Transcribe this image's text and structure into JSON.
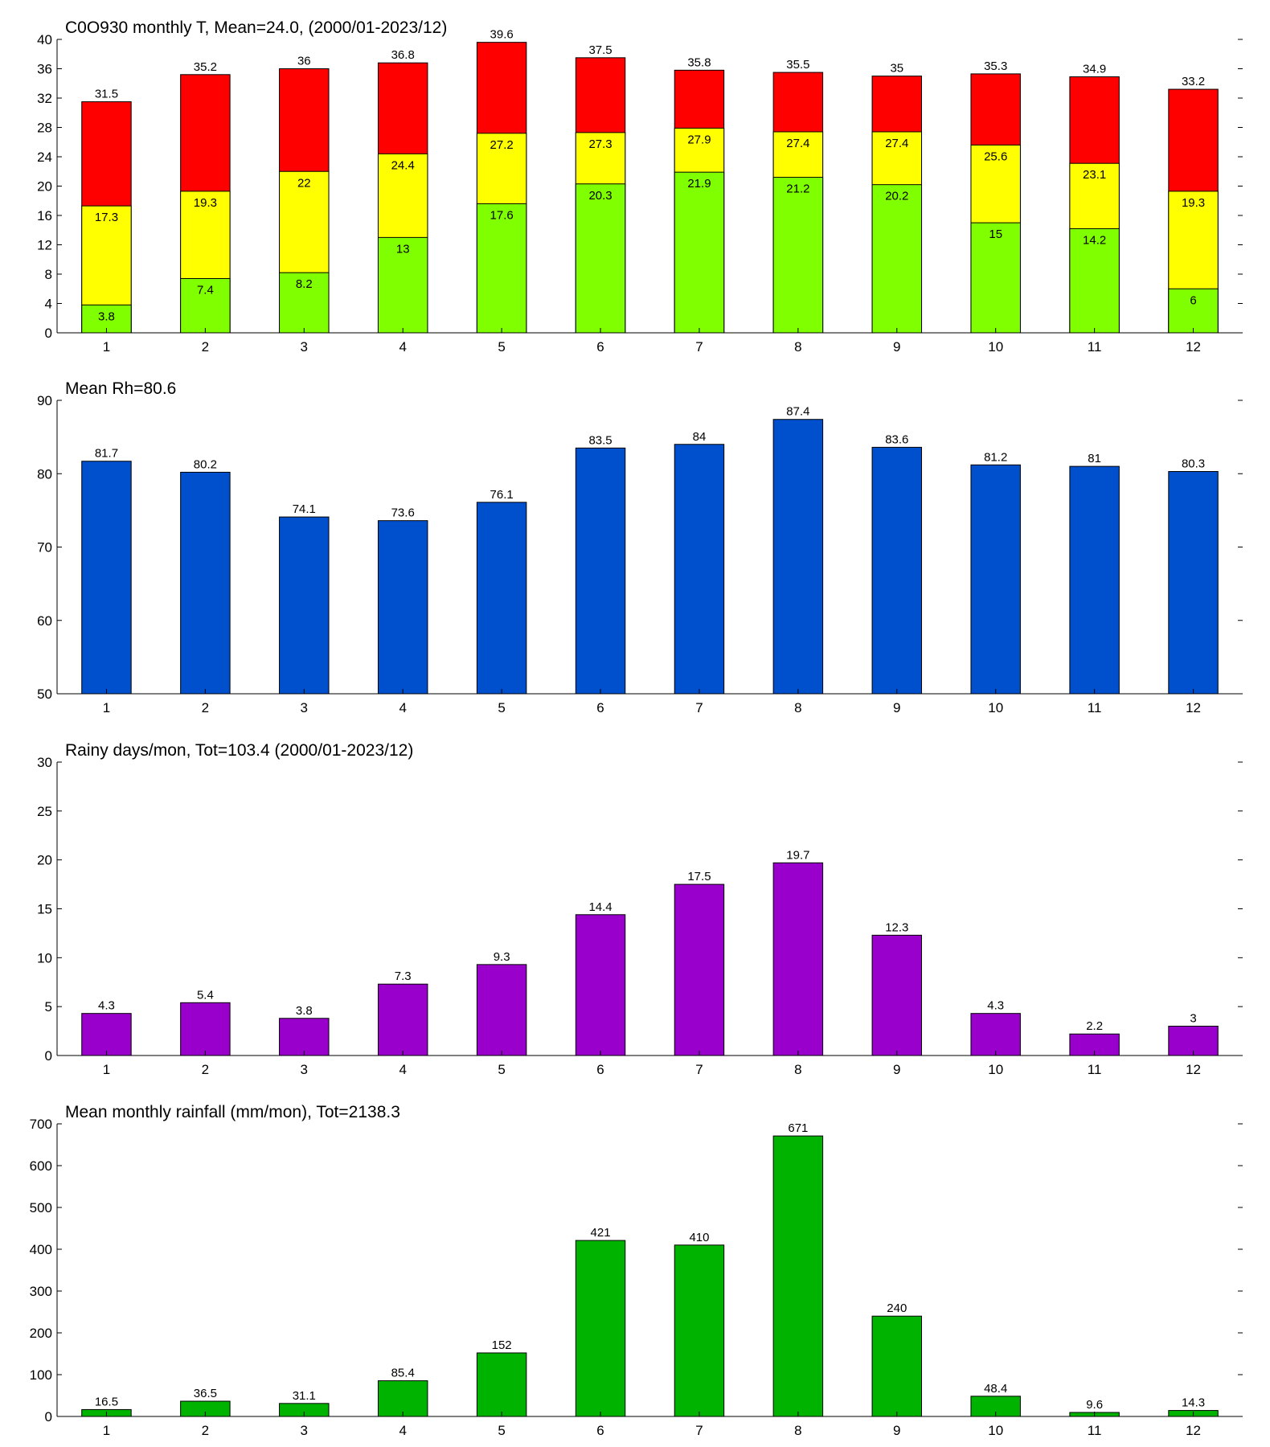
{
  "chart_data": [
    {
      "type": "bar",
      "barmode": "overlay",
      "title": "C0O930 monthly T, Mean=24.0, (2000/01-2023/12)",
      "categories": [
        "1",
        "2",
        "3",
        "4",
        "5",
        "6",
        "7",
        "8",
        "9",
        "10",
        "11",
        "12"
      ],
      "series": [
        {
          "color": "#ff0000",
          "values": [
            31.5,
            35.2,
            36,
            36.8,
            39.6,
            37.5,
            35.8,
            35.5,
            35,
            35.3,
            34.9,
            33.2
          ]
        },
        {
          "color": "#ffff00",
          "values": [
            17.3,
            19.3,
            22,
            24.4,
            27.2,
            27.3,
            27.9,
            27.4,
            27.4,
            25.6,
            23.1,
            19.3
          ]
        },
        {
          "color": "#80ff00",
          "values": [
            3.8,
            7.4,
            8.2,
            13,
            17.6,
            20.3,
            21.9,
            21.2,
            20.2,
            15,
            14.2,
            6
          ]
        }
      ],
      "ylim": [
        0,
        40
      ],
      "yticks": [
        0,
        4,
        8,
        12,
        16,
        20,
        24,
        28,
        32,
        36,
        40
      ]
    },
    {
      "type": "bar",
      "title": "Mean Rh=80.6",
      "categories": [
        "1",
        "2",
        "3",
        "4",
        "5",
        "6",
        "7",
        "8",
        "9",
        "10",
        "11",
        "12"
      ],
      "values": [
        81.7,
        80.2,
        74.1,
        73.6,
        76.1,
        83.5,
        84,
        87.4,
        83.6,
        81.2,
        81,
        80.3
      ],
      "color": "#004fcc",
      "ylim": [
        50,
        90
      ],
      "yticks": [
        50,
        60,
        70,
        80,
        90
      ]
    },
    {
      "type": "bar",
      "title": "Rainy days/mon, Tot=103.4 (2000/01-2023/12)",
      "categories": [
        "1",
        "2",
        "3",
        "4",
        "5",
        "6",
        "7",
        "8",
        "9",
        "10",
        "11",
        "12"
      ],
      "values": [
        4.3,
        5.4,
        3.8,
        7.3,
        9.3,
        14.4,
        17.5,
        19.7,
        12.3,
        4.3,
        2.2,
        3
      ],
      "color": "#9900cc",
      "ylim": [
        0,
        30
      ],
      "yticks": [
        0,
        5,
        10,
        15,
        20,
        25,
        30
      ]
    },
    {
      "type": "bar",
      "title": "Mean monthly rainfall (mm/mon), Tot=2138.3",
      "categories": [
        "1",
        "2",
        "3",
        "4",
        "5",
        "6",
        "7",
        "8",
        "9",
        "10",
        "11",
        "12"
      ],
      "values": [
        16.5,
        36.5,
        31.1,
        85.4,
        152,
        421,
        410,
        671,
        240,
        48.4,
        9.6,
        14.3
      ],
      "color": "#00b300",
      "ylim": [
        0,
        700
      ],
      "yticks": [
        0,
        100,
        200,
        300,
        400,
        500,
        600,
        700
      ]
    }
  ]
}
